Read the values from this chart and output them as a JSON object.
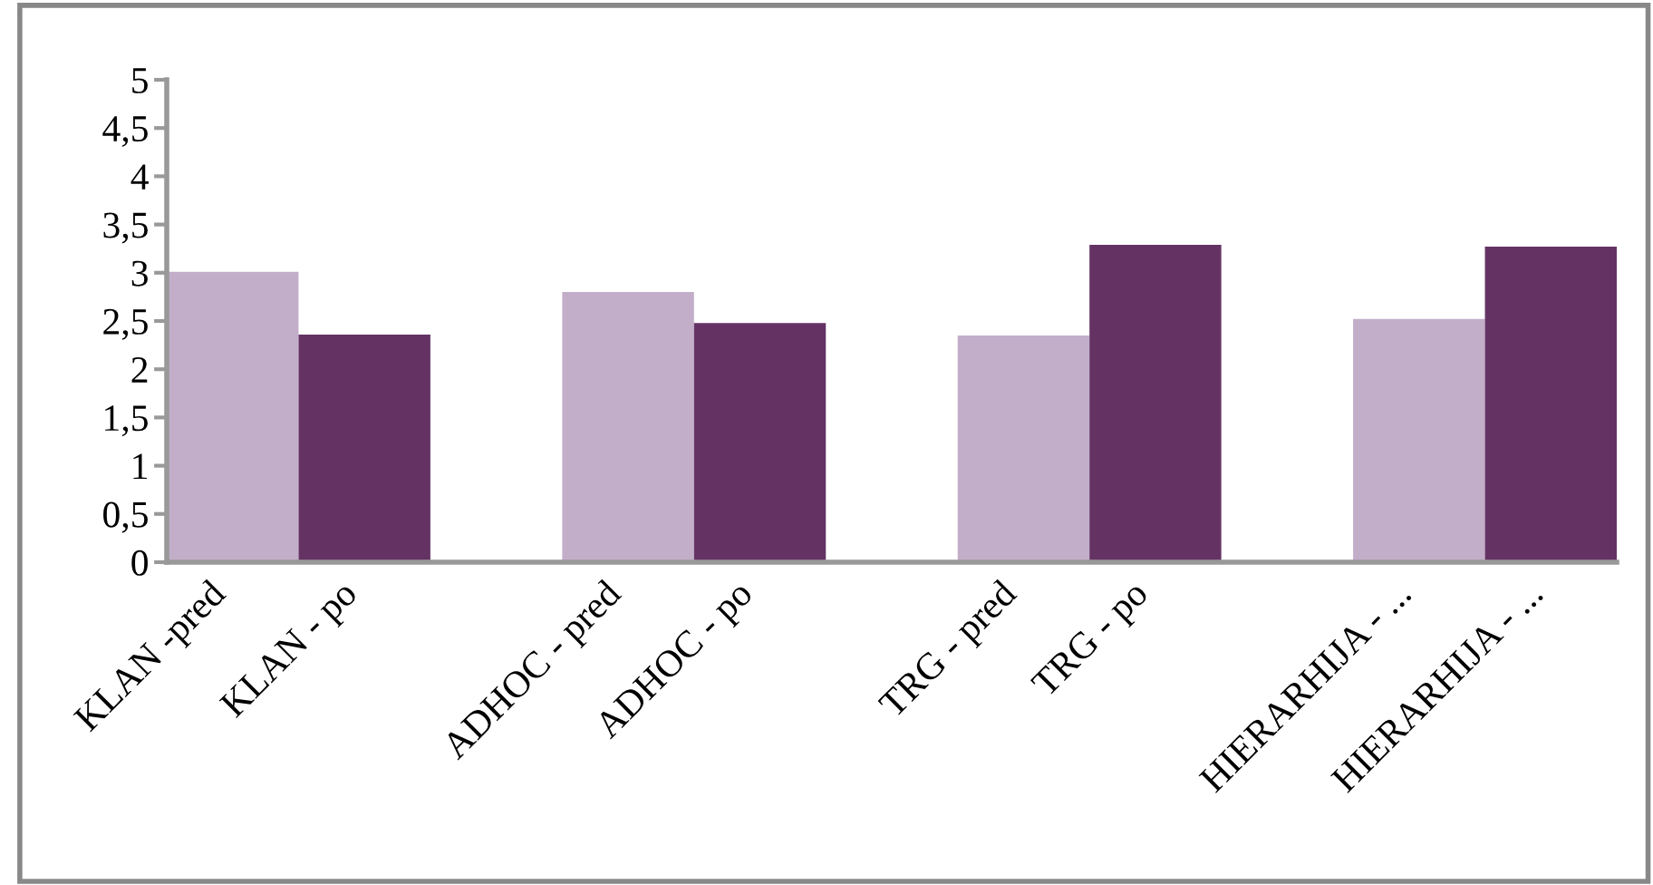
{
  "chart_data": {
    "type": "bar",
    "categories": [
      "KLAN -pred",
      "KLAN - po",
      "ADHOC - pred",
      "ADHOC - po",
      "TRG - pred",
      "TRG - po",
      "HIERARHIJA - ...",
      "HIERARHIJA - ..."
    ],
    "values": [
      3.01,
      2.36,
      2.8,
      2.48,
      2.35,
      3.29,
      2.52,
      3.27
    ],
    "colors": [
      "#c3aeca",
      "#643364",
      "#c3aeca",
      "#643364",
      "#c3aeca",
      "#643364",
      "#c3aeca",
      "#643364"
    ],
    "ylim": [
      0,
      5
    ],
    "yticks": [
      0,
      {
        "value": 0.5,
        "label": "0,5"
      },
      1,
      {
        "value": 1.5,
        "label": "1,5"
      },
      2,
      {
        "value": 2.5,
        "label": "2,5"
      },
      3,
      {
        "value": 3.5,
        "label": "3,5"
      },
      4,
      {
        "value": 4.5,
        "label": "4,5"
      },
      5
    ],
    "grid": false,
    "legend": false
  }
}
